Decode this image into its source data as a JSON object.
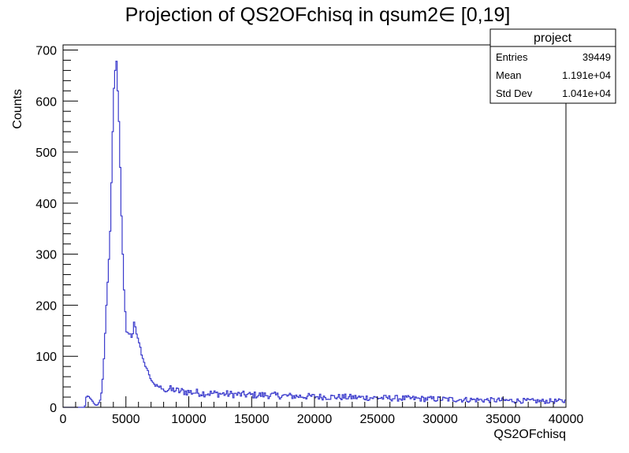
{
  "chart_data": {
    "type": "histogram",
    "title": "Projection of QS2OFchisq in qsum2∈ [0,19]",
    "xlabel": "QS2OFchisq",
    "ylabel": "Counts",
    "xlim": [
      0,
      40000
    ],
    "ylim": [
      0,
      710
    ],
    "xticks": [
      0,
      5000,
      10000,
      15000,
      20000,
      25000,
      30000,
      35000,
      40000
    ],
    "xtick_labels": [
      "0",
      "5000",
      "10000",
      "15000",
      "20000",
      "25000",
      "30000",
      "35000",
      "40000"
    ],
    "yticks": [
      0,
      100,
      200,
      300,
      400,
      500,
      600,
      700
    ],
    "ytick_labels": [
      "0",
      "100",
      "200",
      "300",
      "400",
      "500",
      "600",
      "700"
    ],
    "grid": false,
    "line_color": "#3a3acc",
    "bin_width": 100,
    "bins": [
      [
        1700,
        3
      ],
      [
        1800,
        20
      ],
      [
        1900,
        22
      ],
      [
        2000,
        21
      ],
      [
        2100,
        18
      ],
      [
        2200,
        15
      ],
      [
        2300,
        12
      ],
      [
        2400,
        8
      ],
      [
        2500,
        5
      ],
      [
        2600,
        4
      ],
      [
        2700,
        5
      ],
      [
        2800,
        9
      ],
      [
        2900,
        14
      ],
      [
        3000,
        28
      ],
      [
        3100,
        55
      ],
      [
        3200,
        95
      ],
      [
        3300,
        145
      ],
      [
        3400,
        200
      ],
      [
        3500,
        245
      ],
      [
        3600,
        290
      ],
      [
        3700,
        345
      ],
      [
        3800,
        440
      ],
      [
        3900,
        540
      ],
      [
        4000,
        625
      ],
      [
        4100,
        660
      ],
      [
        4200,
        678
      ],
      [
        4300,
        620
      ],
      [
        4400,
        560
      ],
      [
        4500,
        470
      ],
      [
        4600,
        375
      ],
      [
        4700,
        300
      ],
      [
        4800,
        230
      ],
      [
        4900,
        185
      ],
      [
        5000,
        150
      ],
      [
        5100,
        145
      ],
      [
        5200,
        138
      ],
      [
        5300,
        142
      ],
      [
        5400,
        135
      ],
      [
        5500,
        148
      ],
      [
        5600,
        162
      ],
      [
        5700,
        155
      ],
      [
        5800,
        140
      ],
      [
        5900,
        133
      ],
      [
        6000,
        128
      ],
      [
        6100,
        115
      ],
      [
        6200,
        105
      ],
      [
        6300,
        95
      ],
      [
        6400,
        90
      ],
      [
        6500,
        82
      ],
      [
        6600,
        75
      ],
      [
        6700,
        70
      ],
      [
        6800,
        62
      ],
      [
        6900,
        58
      ],
      [
        7000,
        52
      ],
      [
        7100,
        48
      ],
      [
        7200,
        46
      ],
      [
        7300,
        42
      ],
      [
        7400,
        45
      ],
      [
        7500,
        40
      ],
      [
        7600,
        38
      ],
      [
        7700,
        42
      ],
      [
        7800,
        36
      ],
      [
        7900,
        35
      ],
      [
        8000,
        38
      ],
      [
        8200,
        34
      ],
      [
        8400,
        36
      ],
      [
        8600,
        33
      ],
      [
        8800,
        35
      ],
      [
        9000,
        32
      ],
      [
        9500,
        31
      ],
      [
        10000,
        30
      ],
      [
        11000,
        28
      ],
      [
        12000,
        27
      ],
      [
        13000,
        26
      ],
      [
        14000,
        25
      ],
      [
        15000,
        24
      ],
      [
        16000,
        24
      ],
      [
        17000,
        23
      ],
      [
        18000,
        22
      ],
      [
        20000,
        21
      ],
      [
        22000,
        20
      ],
      [
        24000,
        19
      ],
      [
        26000,
        18
      ],
      [
        28000,
        17
      ],
      [
        30000,
        16
      ],
      [
        32000,
        15
      ],
      [
        34000,
        14
      ],
      [
        36000,
        13
      ],
      [
        38000,
        12
      ],
      [
        39900,
        12
      ]
    ]
  },
  "stats_box": {
    "title": "project",
    "rows": [
      {
        "label": "Entries",
        "value": "39449"
      },
      {
        "label": "Mean",
        "value": "1.191e+04"
      },
      {
        "label": "Std Dev",
        "value": "1.041e+04"
      }
    ]
  }
}
